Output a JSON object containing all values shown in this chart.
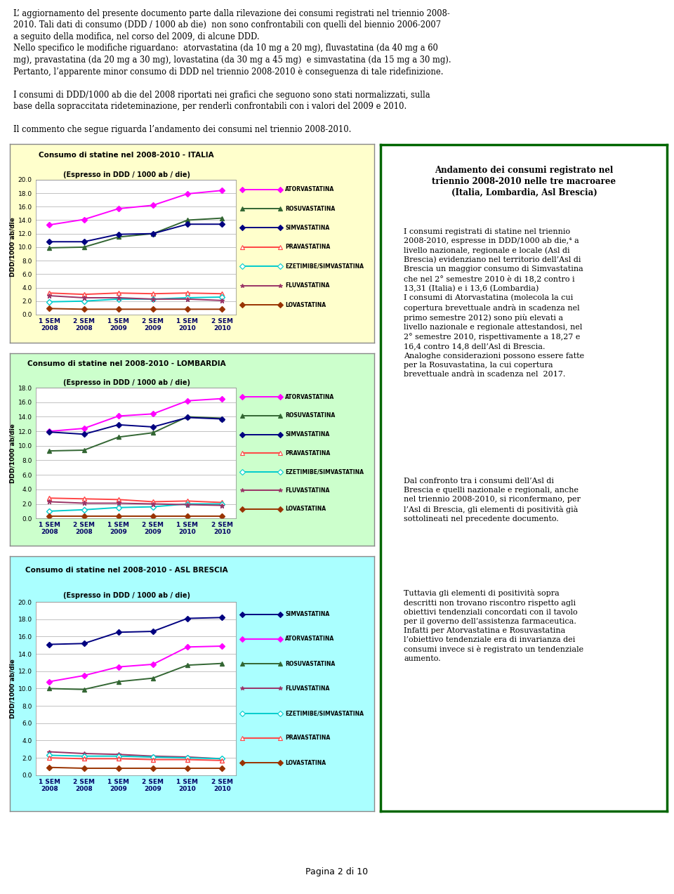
{
  "page_text_top": [
    "L’ aggiornamento del presente documento parte dalla rilevazione dei consumi registrati nel triennio 2008-2010. Tali dati di consumo (DDD / 1000 ab die)  non sono confrontabili con quelli del biennio 2006-2007 a seguito della modifica, nel corso del 2009, di alcune DDD.",
    "Nello specifico le modifiche riguardano:  atorvastatina (da 10 mg a 20 mg), fluvastatina (da 40 mg a 60 mg), pravastatina (da 20 mg a 30 mg), lovastatina (da 30 mg a 45 mg)  e simvastatina (da 15 mg a 30 mg). Pertanto, l’apparente minor consumo di DDD nel triennio 2008-2010 è conseguenza di tale ridefinizione.",
    "I consumi di DDD/1000 ab die del 2008 riportati nei grafici che seguono sono stati normalizzati, sulla base della sopraccitata rideteminazione, per renderli confrontabili con i valori del 2009 e 2010.",
    "Il commento che segue riguarda l’andamento dei consumi nel triennio 2008-2010."
  ],
  "x_labels": [
    "1 SEM\n2008",
    "2 SEM\n2008",
    "1 SEM\n2009",
    "2 SEM\n2009",
    "1 SEM\n2010",
    "2 SEM\n2010"
  ],
  "x_values": [
    0,
    1,
    2,
    3,
    4,
    5
  ],
  "chart1": {
    "title": "Consumo di statine nel 2008-2010 - ITALIA",
    "subtitle": "(Espresso in DDD / 1000 ab / die)",
    "ylabel": "DDD/1000 ab/die",
    "ylim": [
      0.0,
      20.0
    ],
    "yticks": [
      0.0,
      2.0,
      4.0,
      6.0,
      8.0,
      10.0,
      12.0,
      14.0,
      16.0,
      18.0,
      20.0
    ],
    "bg_color": "#FFFFCC",
    "series_order": [
      "ATORVASTATINA",
      "ROSUVASTATINA",
      "SIMVASTATINA",
      "PRAVASTATINA",
      "EZETIMIBE/SIMVASTATINA",
      "FLUVASTATINA",
      "LOVASTATINA"
    ],
    "series": {
      "ATORVASTATINA": {
        "color": "#FF00FF",
        "marker": "D",
        "mfc": "#FF00FF",
        "values": [
          13.3,
          14.1,
          15.7,
          16.2,
          17.9,
          18.4
        ]
      },
      "ROSUVASTATINA": {
        "color": "#336633",
        "marker": "^",
        "mfc": "#336633",
        "values": [
          9.9,
          10.0,
          11.5,
          12.0,
          14.0,
          14.3
        ]
      },
      "SIMVASTATINA": {
        "color": "#000080",
        "marker": "D",
        "mfc": "#000080",
        "values": [
          10.8,
          10.8,
          11.9,
          12.0,
          13.4,
          13.4
        ]
      },
      "PRAVASTATINA": {
        "color": "#FF4444",
        "marker": "^",
        "mfc": "white",
        "values": [
          3.2,
          3.0,
          3.2,
          3.1,
          3.2,
          3.1
        ]
      },
      "EZETIMIBE/SIMVASTATINA": {
        "color": "#00CCCC",
        "marker": "D",
        "mfc": "white",
        "values": [
          1.9,
          2.0,
          2.3,
          2.3,
          2.5,
          2.6
        ]
      },
      "FLUVASTATINA": {
        "color": "#993366",
        "marker": "*",
        "mfc": "#993366",
        "values": [
          2.8,
          2.5,
          2.5,
          2.3,
          2.3,
          2.1
        ]
      },
      "LOVASTATINA": {
        "color": "#993300",
        "marker": "D",
        "mfc": "#993300",
        "values": [
          0.9,
          0.8,
          0.8,
          0.8,
          0.8,
          0.8
        ]
      }
    }
  },
  "chart2": {
    "title": "Consumo di statine nel 2008-2010 - LOMBARDIA",
    "subtitle": "(Espresso in DDD / 1000 ab / die)",
    "ylabel": "DDD/1000 ab/die",
    "ylim": [
      0.0,
      18.0
    ],
    "yticks": [
      0.0,
      2.0,
      4.0,
      6.0,
      8.0,
      10.0,
      12.0,
      14.0,
      16.0,
      18.0
    ],
    "bg_color": "#CCFFCC",
    "series_order": [
      "ATORVASTATINA",
      "ROSUVASTATINA",
      "SIMVASTATINA",
      "PRAVASTATINA",
      "EZETIMIBE/SIMVASTATINA",
      "FLUVASTATINA",
      "LOVASTATINA"
    ],
    "series": {
      "ATORVASTATINA": {
        "color": "#FF00FF",
        "marker": "D",
        "mfc": "#FF00FF",
        "values": [
          12.0,
          12.4,
          14.1,
          14.4,
          16.2,
          16.5
        ]
      },
      "ROSUVASTATINA": {
        "color": "#336633",
        "marker": "^",
        "mfc": "#336633",
        "values": [
          9.3,
          9.4,
          11.2,
          11.8,
          14.0,
          13.8
        ]
      },
      "SIMVASTATINA": {
        "color": "#000080",
        "marker": "D",
        "mfc": "#000080",
        "values": [
          11.9,
          11.6,
          12.9,
          12.6,
          13.9,
          13.7
        ]
      },
      "PRAVASTATINA": {
        "color": "#FF4444",
        "marker": "^",
        "mfc": "white",
        "values": [
          2.8,
          2.7,
          2.6,
          2.3,
          2.4,
          2.2
        ]
      },
      "EZETIMIBE/SIMVASTATINA": {
        "color": "#00CCCC",
        "marker": "D",
        "mfc": "white",
        "values": [
          1.0,
          1.2,
          1.5,
          1.6,
          2.0,
          2.0
        ]
      },
      "FLUVASTATINA": {
        "color": "#993366",
        "marker": "*",
        "mfc": "#993366",
        "values": [
          2.3,
          2.1,
          2.1,
          2.0,
          1.9,
          1.8
        ]
      },
      "LOVASTATINA": {
        "color": "#993300",
        "marker": "D",
        "mfc": "#993300",
        "values": [
          0.3,
          0.3,
          0.3,
          0.3,
          0.3,
          0.3
        ]
      }
    }
  },
  "chart3": {
    "title": "Consumo di statine nel 2008-2010 - ASL BRESCIA",
    "subtitle": "(Espresso in DDD / 1000 ab / die)",
    "ylabel": "DDD/1000 ab/die",
    "ylim": [
      0.0,
      20.0
    ],
    "yticks": [
      0.0,
      2.0,
      4.0,
      6.0,
      8.0,
      10.0,
      12.0,
      14.0,
      16.0,
      18.0,
      20.0
    ],
    "bg_color": "#AAFFFF",
    "series_order": [
      "SIMVASTATINA",
      "ATORVASTATINA",
      "ROSUVASTATINA",
      "FLUVASTATINA",
      "EZETIMIBE/SIMVASTATINA",
      "PRAVASTATINA",
      "LOVASTATINA"
    ],
    "series": {
      "SIMVASTATINA": {
        "color": "#000080",
        "marker": "D",
        "mfc": "#000080",
        "values": [
          15.1,
          15.2,
          16.5,
          16.6,
          18.1,
          18.2
        ]
      },
      "ATORVASTATINA": {
        "color": "#FF00FF",
        "marker": "D",
        "mfc": "#FF00FF",
        "values": [
          10.8,
          11.5,
          12.5,
          12.8,
          14.8,
          14.9
        ]
      },
      "ROSUVASTATINA": {
        "color": "#336633",
        "marker": "^",
        "mfc": "#336633",
        "values": [
          10.0,
          9.9,
          10.8,
          11.2,
          12.7,
          12.9
        ]
      },
      "FLUVASTATINA": {
        "color": "#993366",
        "marker": "*",
        "mfc": "#993366",
        "values": [
          2.7,
          2.5,
          2.4,
          2.2,
          2.1,
          1.9
        ]
      },
      "EZETIMIBE/SIMVASTATINA": {
        "color": "#00CCCC",
        "marker": "D",
        "mfc": "white",
        "values": [
          2.3,
          2.2,
          2.2,
          2.1,
          2.0,
          1.9
        ]
      },
      "PRAVASTATINA": {
        "color": "#FF4444",
        "marker": "^",
        "mfc": "white",
        "values": [
          2.0,
          1.9,
          1.9,
          1.8,
          1.8,
          1.7
        ]
      },
      "LOVASTATINA": {
        "color": "#993300",
        "marker": "D",
        "mfc": "#993300",
        "values": [
          0.9,
          0.8,
          0.8,
          0.8,
          0.8,
          0.8
        ]
      }
    }
  },
  "right_box_title": "Andamento dei consumi registrato nel\ntriennio 2008-2010 nelle tre macroaree\n(Italia, Lombardia, Asl Brescia)",
  "right_box_border": "#006600",
  "footer": "Pagina 2 di 10"
}
